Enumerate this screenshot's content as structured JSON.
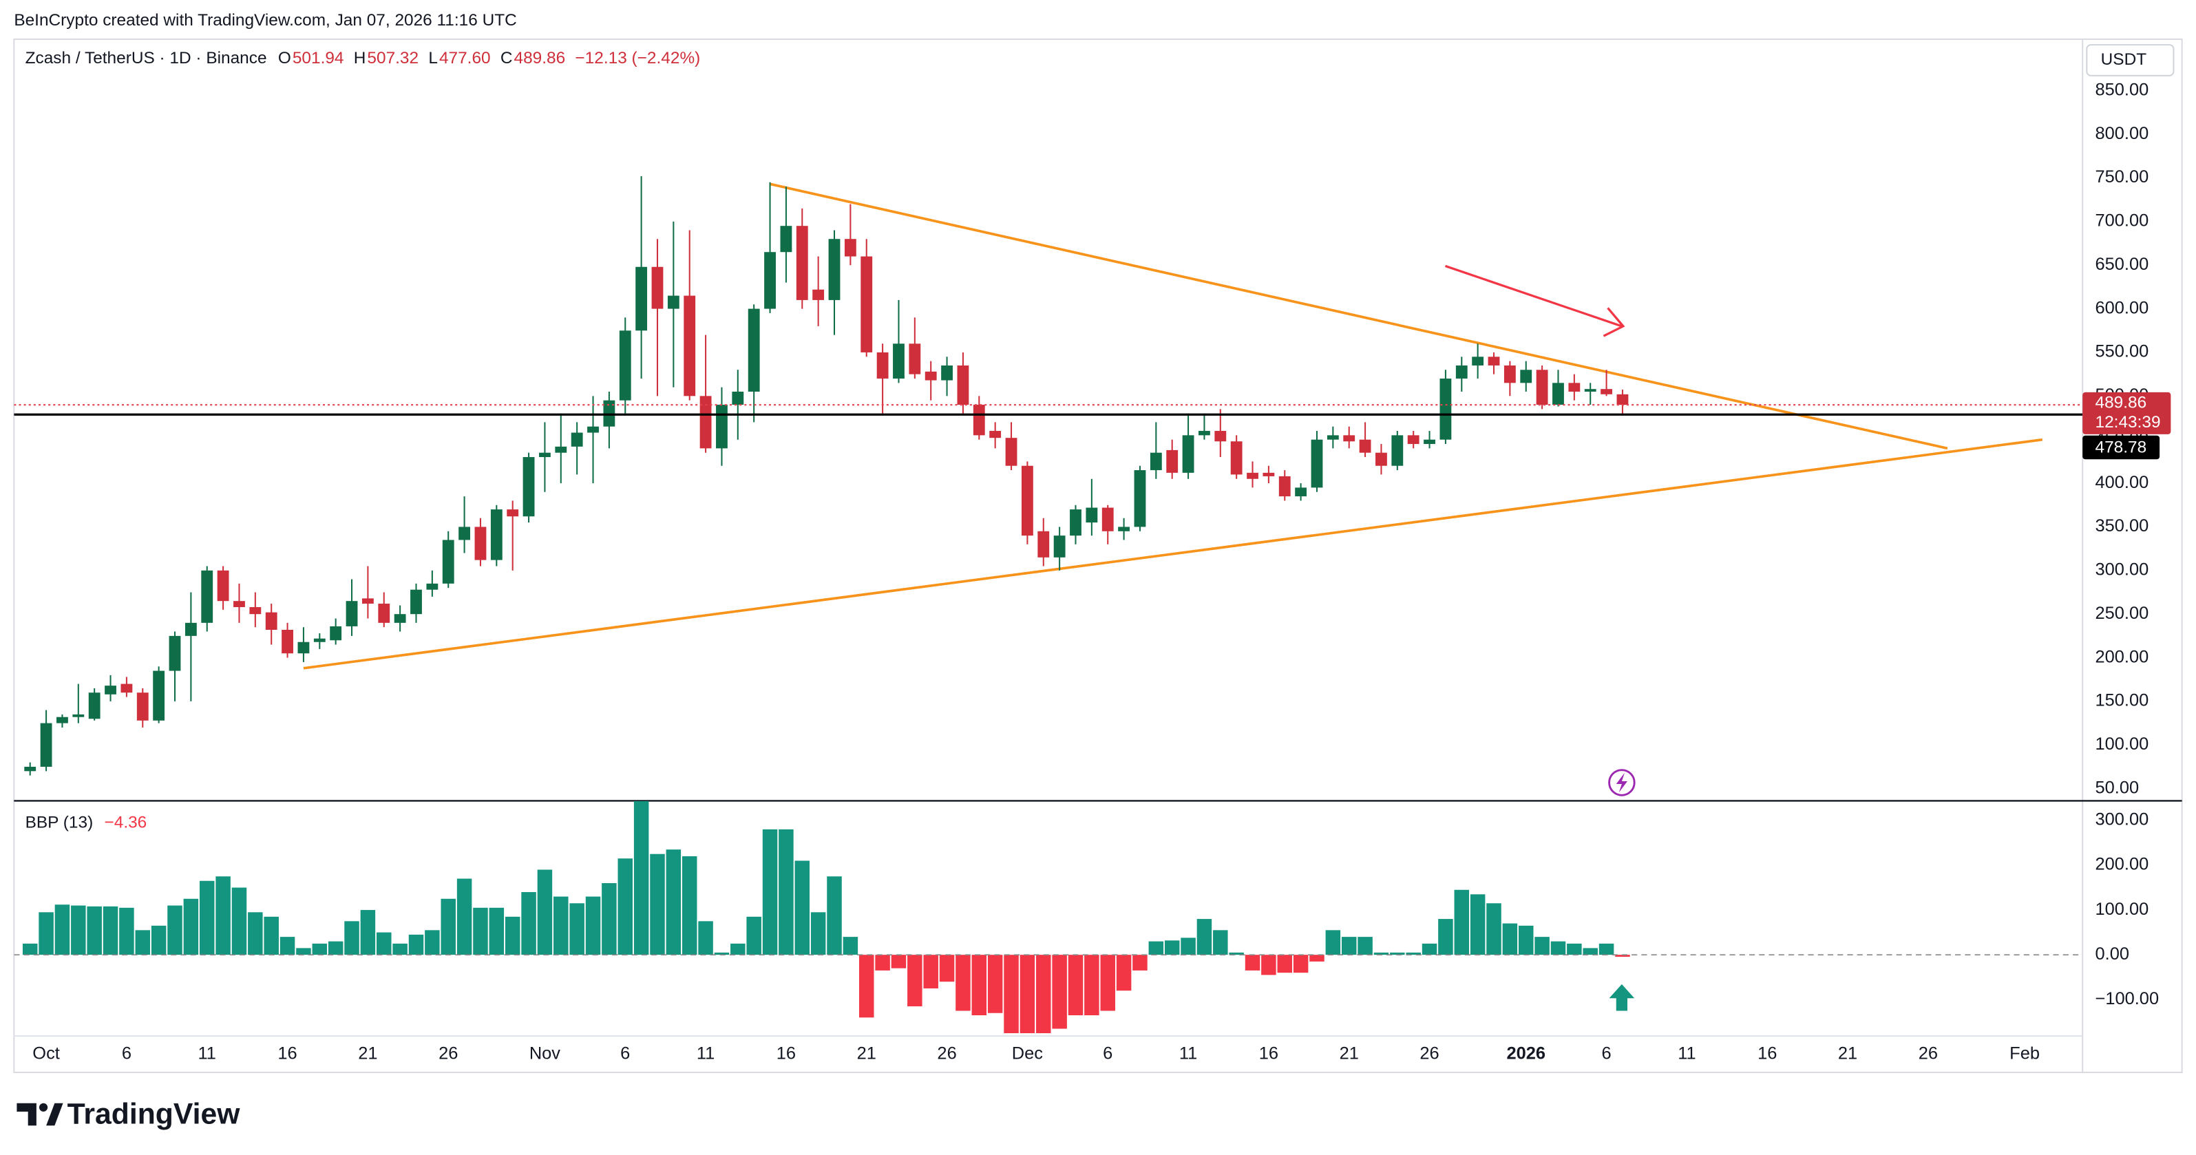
{
  "caption": "BeInCrypto created with TradingView.com, Jan 07, 2026 11:16 UTC",
  "brand": "TradingView",
  "chart_data": [
    {
      "type": "candlestick",
      "title": "Zcash / TetherUS · 1D · Binance",
      "ohlc_legend": [
        {
          "label": "O",
          "value": 501.94
        },
        {
          "label": "H",
          "value": 507.32
        },
        {
          "label": "L",
          "value": 477.6,
          "value_label": "477.60"
        },
        {
          "label": "C",
          "value": 489.86
        }
      ],
      "change": "−12.13 (−2.42%)",
      "currency": "USDT",
      "countdown": "12:43:39",
      "up_color": "#0f6e47",
      "down_color": "#cf2f3b",
      "x": [
        -1,
        0,
        1,
        2,
        3,
        4,
        5,
        6,
        7,
        8,
        9,
        10,
        11,
        12,
        13,
        14,
        15,
        16,
        17,
        18,
        19,
        20,
        21,
        22,
        23,
        24,
        25,
        26,
        27,
        28,
        29,
        30,
        31,
        32,
        33,
        34,
        35,
        36,
        37,
        38,
        39,
        40,
        41,
        42,
        43,
        44,
        45,
        46,
        47,
        48,
        49,
        50,
        51,
        52,
        53,
        54,
        55,
        56,
        57,
        58,
        59,
        60,
        61,
        62,
        63,
        64,
        65,
        66,
        67,
        68,
        69,
        70,
        71,
        72,
        73,
        74,
        75,
        76,
        77,
        78,
        79,
        80,
        81,
        82,
        83,
        84,
        85,
        86,
        87,
        88,
        89,
        90,
        91,
        92,
        93,
        94,
        95,
        96,
        97,
        98
      ],
      "open": [
        70,
        75,
        125,
        132,
        130,
        158,
        170,
        160,
        128,
        185,
        225,
        240,
        300,
        265,
        258,
        252,
        232,
        205,
        218,
        220,
        236,
        268,
        262,
        240,
        250,
        278,
        285,
        335,
        350,
        312,
        370,
        362,
        430,
        435,
        442,
        458,
        465,
        495,
        575,
        648,
        600,
        615,
        500,
        440,
        490,
        505,
        600,
        665,
        695,
        622,
        610,
        680,
        660,
        550,
        520,
        560,
        528,
        518,
        535,
        490,
        460,
        452,
        420,
        345,
        315,
        340,
        355,
        372,
        345,
        350,
        415,
        438,
        412,
        455,
        460,
        448,
        412,
        412,
        408,
        385,
        395,
        450,
        455,
        450,
        435,
        420,
        455,
        445,
        450,
        520,
        535,
        545,
        535,
        515,
        530,
        490,
        515,
        505,
        508,
        501.94
      ],
      "high": [
        80,
        140,
        135,
        170,
        165,
        180,
        178,
        165,
        190,
        230,
        275,
        305,
        305,
        285,
        275,
        262,
        240,
        235,
        228,
        245,
        290,
        305,
        275,
        260,
        285,
        300,
        345,
        385,
        360,
        375,
        380,
        435,
        470,
        480,
        470,
        500,
        505,
        590,
        752,
        680,
        700,
        690,
        570,
        510,
        530,
        605,
        745,
        740,
        715,
        660,
        690,
        720,
        680,
        560,
        610,
        590,
        540,
        545,
        550,
        500,
        470,
        470,
        425,
        360,
        350,
        375,
        405,
        375,
        360,
        420,
        470,
        450,
        480,
        480,
        485,
        455,
        425,
        420,
        415,
        400,
        460,
        465,
        465,
        470,
        445,
        460,
        460,
        460,
        530,
        545,
        560,
        550,
        540,
        540,
        535,
        530,
        525,
        515,
        530,
        507.32
      ],
      "low": [
        65,
        70,
        120,
        125,
        128,
        150,
        155,
        120,
        125,
        150,
        150,
        230,
        255,
        240,
        235,
        215,
        200,
        195,
        210,
        215,
        225,
        245,
        235,
        230,
        240,
        270,
        280,
        320,
        305,
        305,
        300,
        355,
        390,
        400,
        410,
        400,
        440,
        480,
        520,
        500,
        510,
        495,
        435,
        420,
        450,
        470,
        595,
        630,
        600,
        580,
        570,
        650,
        545,
        480,
        515,
        520,
        495,
        500,
        480,
        450,
        440,
        415,
        330,
        305,
        300,
        330,
        340,
        330,
        335,
        345,
        405,
        405,
        405,
        450,
        430,
        405,
        395,
        400,
        380,
        380,
        390,
        440,
        440,
        430,
        410,
        415,
        440,
        440,
        445,
        505,
        520,
        525,
        500,
        505,
        485,
        488,
        495,
        490,
        500,
        477.6
      ],
      "close": [
        75,
        125,
        132,
        135,
        160,
        168,
        160,
        128,
        185,
        225,
        240,
        300,
        265,
        258,
        250,
        232,
        205,
        218,
        222,
        236,
        265,
        262,
        240,
        250,
        278,
        285,
        335,
        350,
        312,
        370,
        362,
        430,
        435,
        442,
        458,
        465,
        495,
        575,
        648,
        600,
        615,
        500,
        440,
        490,
        505,
        600,
        665,
        695,
        610,
        610,
        680,
        660,
        550,
        520,
        560,
        525,
        518,
        535,
        490,
        455,
        452,
        420,
        340,
        315,
        340,
        370,
        372,
        345,
        350,
        415,
        435,
        412,
        455,
        460,
        448,
        410,
        405,
        408,
        385,
        395,
        450,
        455,
        448,
        435,
        420,
        455,
        445,
        450,
        520,
        535,
        545,
        535,
        515,
        530,
        490,
        515,
        505,
        508,
        502,
        489.86
      ],
      "xlim": [
        -2,
        126.6
      ],
      "xticks": [
        {
          "value": 0,
          "label": "Oct"
        },
        {
          "value": 5,
          "label": "6"
        },
        {
          "value": 10,
          "label": "11"
        },
        {
          "value": 15,
          "label": "16"
        },
        {
          "value": 20,
          "label": "21"
        },
        {
          "value": 25,
          "label": "26"
        },
        {
          "value": 31,
          "label": "Nov"
        },
        {
          "value": 36,
          "label": "6"
        },
        {
          "value": 41,
          "label": "11"
        },
        {
          "value": 46,
          "label": "16"
        },
        {
          "value": 51,
          "label": "21"
        },
        {
          "value": 56,
          "label": "26"
        },
        {
          "value": 61,
          "label": "Dec"
        },
        {
          "value": 66,
          "label": "6"
        },
        {
          "value": 71,
          "label": "11"
        },
        {
          "value": 76,
          "label": "16"
        },
        {
          "value": 81,
          "label": "21"
        },
        {
          "value": 86,
          "label": "26"
        },
        {
          "value": 92,
          "label": "2026"
        },
        {
          "value": 97,
          "label": "6"
        },
        {
          "value": 102,
          "label": "11"
        },
        {
          "value": 107,
          "label": "16"
        },
        {
          "value": 112,
          "label": "21"
        },
        {
          "value": 117,
          "label": "26"
        },
        {
          "value": 123,
          "label": "Feb"
        }
      ],
      "ylim": [
        36,
        909
      ],
      "yticks": [
        {
          "value": 50,
          "label": "50.00"
        },
        {
          "value": 100,
          "label": "100.00"
        },
        {
          "value": 150,
          "label": "150.00"
        },
        {
          "value": 200,
          "label": "200.00"
        },
        {
          "value": 250,
          "label": "250.00"
        },
        {
          "value": 300,
          "label": "300.00"
        },
        {
          "value": 350,
          "label": "350.00"
        },
        {
          "value": 400,
          "label": "400.00"
        },
        {
          "value": 450,
          "label": "450.00"
        },
        {
          "value": 500,
          "label": "500.00"
        },
        {
          "value": 550,
          "label": "550.00"
        },
        {
          "value": 600,
          "label": "600.00"
        },
        {
          "value": 650,
          "label": "650.00"
        },
        {
          "value": 700,
          "label": "700.00"
        },
        {
          "value": 750,
          "label": "750.00"
        },
        {
          "value": 800,
          "label": "800.00"
        },
        {
          "value": 850,
          "label": "850.00"
        }
      ],
      "price_lines": [
        {
          "value": 489.86,
          "color": "#e5404e",
          "style": "dotted"
        },
        {
          "value": 478.78,
          "color": "#000000",
          "style": "solid"
        }
      ],
      "trendlines": [
        {
          "color": "#f7931a",
          "x": [
            45,
            118.2
          ],
          "values": [
            743,
            440
          ]
        },
        {
          "color": "#f7931a",
          "x": [
            16,
            124.1
          ],
          "values": [
            188,
            450
          ]
        }
      ]
    },
    {
      "type": "bar",
      "title": "BBP (13)",
      "legend_value": "−4.36",
      "up_color": "#14957f",
      "down_color": "#f23645",
      "x": [
        -1,
        0,
        1,
        2,
        3,
        4,
        5,
        6,
        7,
        8,
        9,
        10,
        11,
        12,
        13,
        14,
        15,
        16,
        17,
        18,
        19,
        20,
        21,
        22,
        23,
        24,
        25,
        26,
        27,
        28,
        29,
        30,
        31,
        32,
        33,
        34,
        35,
        36,
        37,
        38,
        39,
        40,
        41,
        42,
        43,
        44,
        45,
        46,
        47,
        48,
        49,
        50,
        51,
        52,
        53,
        54,
        55,
        56,
        57,
        58,
        59,
        60,
        61,
        62,
        63,
        64,
        65,
        66,
        67,
        68,
        69,
        70,
        71,
        72,
        73,
        74,
        75,
        76,
        77,
        78,
        79,
        80,
        81,
        82,
        83,
        84,
        85,
        86,
        87,
        88,
        89,
        90,
        91,
        92,
        93,
        94,
        95,
        96,
        97,
        98
      ],
      "values": [
        25,
        95,
        112,
        110,
        108,
        108,
        105,
        55,
        65,
        110,
        125,
        165,
        175,
        150,
        95,
        85,
        40,
        15,
        25,
        30,
        75,
        100,
        50,
        25,
        45,
        55,
        125,
        170,
        105,
        105,
        85,
        140,
        190,
        130,
        115,
        130,
        160,
        215,
        343,
        225,
        235,
        220,
        75,
        5,
        25,
        85,
        280,
        280,
        210,
        95,
        175,
        40,
        -140,
        -35,
        -30,
        -115,
        -75,
        -60,
        -125,
        -135,
        -130,
        -175,
        -175,
        -175,
        -165,
        -135,
        -135,
        -125,
        -80,
        -35,
        30,
        32,
        38,
        80,
        55,
        5,
        -35,
        -45,
        -40,
        -40,
        -15,
        55,
        40,
        40,
        5,
        5,
        5,
        25,
        80,
        145,
        135,
        115,
        70,
        65,
        40,
        30,
        25,
        15,
        25,
        -4.36
      ],
      "xlim": [
        -2,
        126.6
      ],
      "ylim": [
        -181.25,
        343.75
      ],
      "yticks": [
        {
          "value": -100,
          "label": "−100.00"
        },
        {
          "value": 0,
          "label": "0.00"
        },
        {
          "value": 100,
          "label": "100.00"
        },
        {
          "value": 200,
          "label": "200.00"
        },
        {
          "value": 300,
          "label": "300.00"
        }
      ],
      "zero_line": true
    }
  ]
}
